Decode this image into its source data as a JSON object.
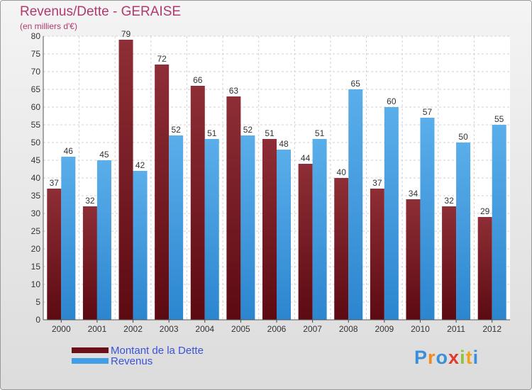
{
  "header": {
    "title": "Revenus/Dette - GERAISE",
    "subtitle": "(en milliers d'€)"
  },
  "chart_data": {
    "type": "bar",
    "categories": [
      "2000",
      "2001",
      "2002",
      "2003",
      "2004",
      "2005",
      "2006",
      "2007",
      "2008",
      "2009",
      "2010",
      "2011",
      "2012"
    ],
    "series": [
      {
        "name": "Montant de la Dette",
        "color": "#7a1a22",
        "values": [
          37,
          32,
          79,
          72,
          66,
          63,
          51,
          44,
          40,
          37,
          34,
          32,
          29
        ]
      },
      {
        "name": "Revenus",
        "color": "#3f9ee6",
        "values": [
          46,
          45,
          42,
          52,
          51,
          52,
          48,
          51,
          65,
          60,
          57,
          50,
          55
        ]
      }
    ],
    "ylim": [
      0,
      80
    ],
    "yticks": [
      0,
      5,
      10,
      15,
      20,
      25,
      30,
      35,
      40,
      45,
      50,
      55,
      60,
      65,
      70,
      75,
      80
    ],
    "grid": true,
    "legend_position": "bottom-left"
  },
  "logo": {
    "letters": [
      {
        "char": "P",
        "color": "#3b8fd8"
      },
      {
        "char": "r",
        "color": "#f08a1c"
      },
      {
        "char": "o",
        "color": "#3b8fd8"
      },
      {
        "char": "x",
        "color": "#e23b2e"
      },
      {
        "char": "i",
        "color": "#8cc63f"
      },
      {
        "char": "t",
        "color": "#f0a21c"
      },
      {
        "char": "i",
        "color": "#3b8fd8"
      }
    ]
  }
}
